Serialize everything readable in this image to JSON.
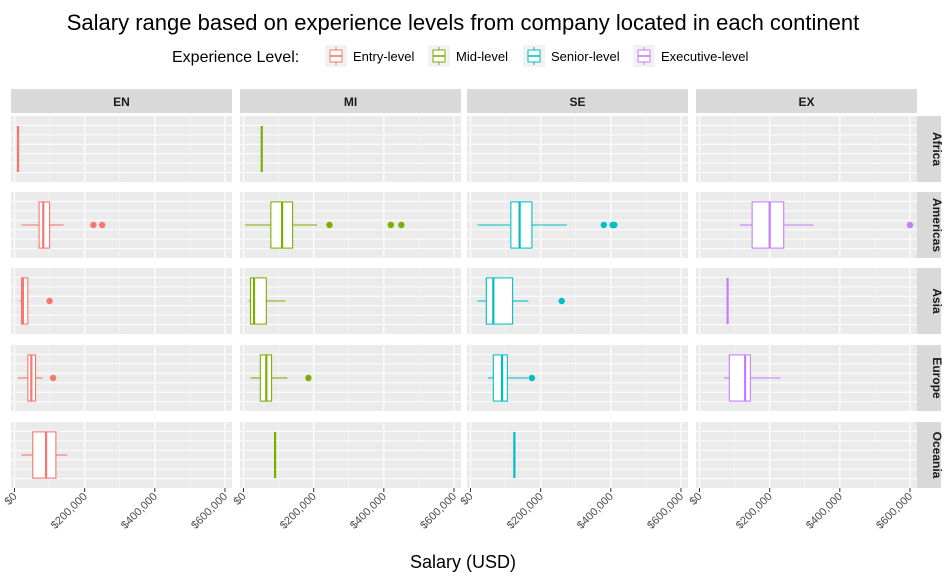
{
  "chart_data": {
    "type": "boxplot",
    "title": "Salary range based on experience levels from company located in each continent",
    "xlabel": "Salary (USD)",
    "ylabel": "",
    "xlim": [
      -10000,
      620000
    ],
    "x_ticks": [
      0,
      200000,
      400000,
      600000
    ],
    "x_tick_labels": [
      "$0",
      "$200,000",
      "$400,000",
      "$600,000"
    ],
    "grid": true,
    "legend": {
      "title": "Experience Level:",
      "position": "top",
      "entries": [
        {
          "key": "EN",
          "label": "Entry-level",
          "color": "#F8766D"
        },
        {
          "key": "MI",
          "label": "Mid-level",
          "color": "#7CAE00"
        },
        {
          "key": "SE",
          "label": "Senior-level",
          "color": "#00BFC4"
        },
        {
          "key": "EX",
          "label": "Executive-level",
          "color": "#C77CFF"
        }
      ]
    },
    "facet_columns": [
      "EN",
      "MI",
      "SE",
      "EX"
    ],
    "facet_rows": [
      "Africa",
      "Americas",
      "Asia",
      "Europe",
      "Oceania"
    ],
    "boxes": [
      {
        "col": "EN",
        "row": "Africa",
        "min": 10000,
        "q1": 10000,
        "median": 10000,
        "q3": 10000,
        "max": 10000,
        "outliers": []
      },
      {
        "col": "EN",
        "row": "Americas",
        "min": 20000,
        "q1": 70000,
        "median": 82000,
        "q3": 100000,
        "max": 140000,
        "outliers": [
          225000,
          250000
        ]
      },
      {
        "col": "EN",
        "row": "Asia",
        "min": 15000,
        "q1": 20000,
        "median": 24000,
        "q3": 38000,
        "max": 40000,
        "outliers": [
          100000
        ]
      },
      {
        "col": "EN",
        "row": "Europe",
        "min": 10000,
        "q1": 38000,
        "median": 48000,
        "q3": 60000,
        "max": 80000,
        "outliers": [
          110000
        ]
      },
      {
        "col": "EN",
        "row": "Oceania",
        "min": 20000,
        "q1": 52000,
        "median": 90000,
        "q3": 118000,
        "max": 150000,
        "outliers": []
      },
      {
        "col": "MI",
        "row": "Africa",
        "min": 52000,
        "q1": 52000,
        "median": 52000,
        "q3": 52000,
        "max": 52000,
        "outliers": []
      },
      {
        "col": "MI",
        "row": "Americas",
        "min": 5000,
        "q1": 78000,
        "median": 110000,
        "q3": 140000,
        "max": 210000,
        "outliers": [
          245000,
          420000,
          450000
        ]
      },
      {
        "col": "MI",
        "row": "Asia",
        "min": 15000,
        "q1": 20000,
        "median": 30000,
        "q3": 65000,
        "max": 120000,
        "outliers": []
      },
      {
        "col": "MI",
        "row": "Europe",
        "min": 20000,
        "q1": 48000,
        "median": 65000,
        "q3": 80000,
        "max": 125000,
        "outliers": [
          185000
        ]
      },
      {
        "col": "MI",
        "row": "Oceania",
        "min": 90000,
        "q1": 90000,
        "median": 90000,
        "q3": 90000,
        "max": 90000,
        "outliers": []
      },
      {
        "col": "SE",
        "row": "Americas",
        "min": 20000,
        "q1": 115000,
        "median": 140000,
        "q3": 175000,
        "max": 275000,
        "outliers": [
          380000,
          405000,
          410000
        ]
      },
      {
        "col": "SE",
        "row": "Asia",
        "min": 20000,
        "q1": 45000,
        "median": 65000,
        "q3": 120000,
        "max": 165000,
        "outliers": [
          260000
        ]
      },
      {
        "col": "SE",
        "row": "Europe",
        "min": 50000,
        "q1": 65000,
        "median": 90000,
        "q3": 105000,
        "max": 165000,
        "outliers": [
          175000
        ]
      },
      {
        "col": "SE",
        "row": "Oceania",
        "min": 125000,
        "q1": 125000,
        "median": 125000,
        "q3": 125000,
        "max": 125000,
        "outliers": []
      },
      {
        "col": "EX",
        "row": "Americas",
        "min": 115000,
        "q1": 150000,
        "median": 200000,
        "q3": 240000,
        "max": 325000,
        "outliers": [
          600000
        ]
      },
      {
        "col": "EX",
        "row": "Asia",
        "min": 80000,
        "q1": 80000,
        "median": 80000,
        "q3": 80000,
        "max": 80000,
        "outliers": []
      },
      {
        "col": "EX",
        "row": "Europe",
        "min": 70000,
        "q1": 85000,
        "median": 130000,
        "q3": 145000,
        "max": 230000,
        "outliers": []
      }
    ]
  }
}
